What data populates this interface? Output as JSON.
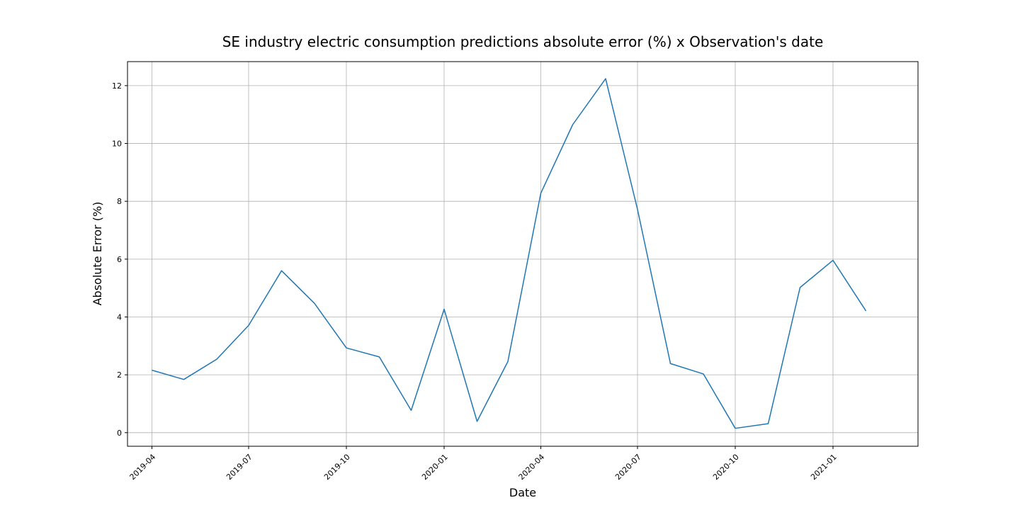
{
  "chart_data": {
    "type": "line",
    "title": "SE industry electric consumption predictions absolute error (%) x Observation's date",
    "xlabel": "Date",
    "ylabel": "Absolute Error (%)",
    "x_axis_type": "date",
    "xlim": [
      "2019-03-09",
      "2021-03-22"
    ],
    "ylim": [
      -0.47,
      12.83
    ],
    "grid": true,
    "x_ticks": [
      "2019-04",
      "2019-07",
      "2019-10",
      "2020-01",
      "2020-04",
      "2020-07",
      "2020-10",
      "2021-01"
    ],
    "y_ticks": [
      0,
      2,
      4,
      6,
      8,
      10,
      12
    ],
    "series_color": "#1f77b4",
    "series": [
      {
        "x": [
          "2019-04-01",
          "2019-05-01",
          "2019-06-01",
          "2019-07-01",
          "2019-08-01",
          "2019-09-01",
          "2019-10-01",
          "2019-11-01",
          "2019-12-01",
          "2020-01-01",
          "2020-02-01",
          "2020-03-01",
          "2020-04-01",
          "2020-05-01",
          "2020-06-01",
          "2020-07-01",
          "2020-08-01",
          "2020-09-01",
          "2020-10-01",
          "2020-11-01",
          "2020-12-01",
          "2021-01-01",
          "2021-02-01"
        ],
        "values": [
          2.16,
          1.84,
          2.54,
          3.71,
          5.6,
          4.47,
          2.93,
          2.62,
          0.77,
          4.27,
          0.39,
          2.46,
          8.28,
          10.65,
          12.24,
          7.72,
          2.39,
          2.03,
          0.15,
          0.31,
          5.02,
          5.96,
          4.21
        ]
      }
    ]
  }
}
